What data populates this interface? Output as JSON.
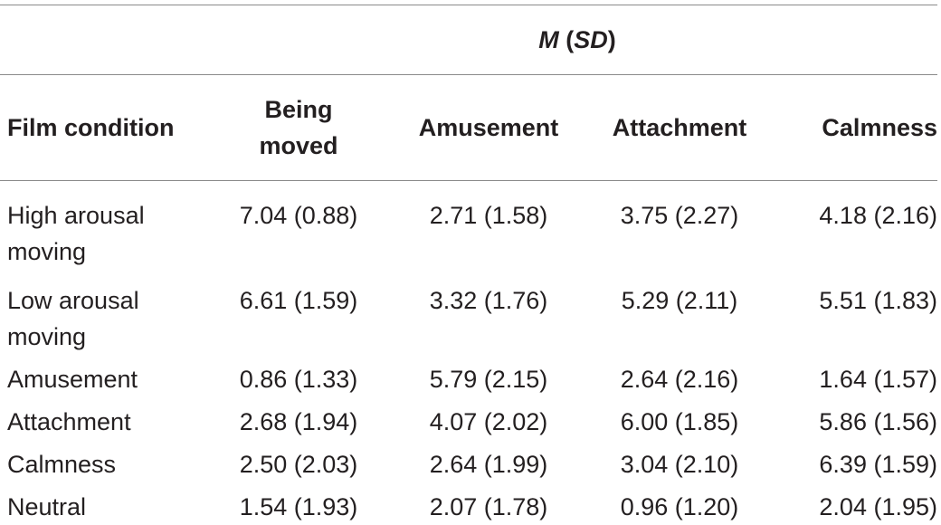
{
  "table": {
    "super_header_italic": "M",
    "super_header_open": " (",
    "super_header_sd": "SD",
    "super_header_close": ")",
    "columns": [
      "Film condition",
      "Being moved",
      "Amusement",
      "Attachment",
      "Calmness"
    ],
    "rows": [
      {
        "condition": "High arousal moving",
        "values": [
          "7.04 (0.88)",
          "2.71 (1.58)",
          "3.75 (2.27)",
          "4.18 (2.16)"
        ]
      },
      {
        "condition": "Low arousal moving",
        "values": [
          "6.61 (1.59)",
          "3.32 (1.76)",
          "5.29 (2.11)",
          "5.51 (1.83)"
        ]
      },
      {
        "condition": "Amusement",
        "values": [
          "0.86 (1.33)",
          "5.79 (2.15)",
          "2.64 (2.16)",
          "1.64 (1.57)"
        ]
      },
      {
        "condition": "Attachment",
        "values": [
          "2.68 (1.94)",
          "4.07 (2.02)",
          "6.00 (1.85)",
          "5.86 (1.56)"
        ]
      },
      {
        "condition": "Calmness",
        "values": [
          "2.50 (2.03)",
          "2.64 (1.99)",
          "3.04 (2.10)",
          "6.39 (1.59)"
        ]
      },
      {
        "condition": "Neutral",
        "values": [
          "1.54 (1.93)",
          "2.07 (1.78)",
          "0.96 (1.20)",
          "2.04 (1.95)"
        ]
      }
    ]
  }
}
